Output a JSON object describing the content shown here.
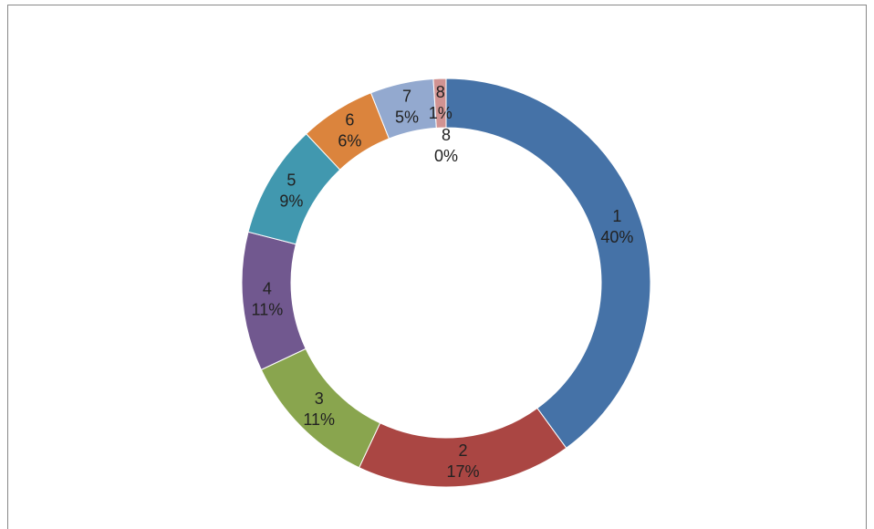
{
  "chart_data": {
    "type": "donut",
    "categories": [
      "1",
      "2",
      "3",
      "4",
      "5",
      "6",
      "7",
      "8",
      "8"
    ],
    "values": [
      40,
      17,
      11,
      11,
      9,
      6,
      5,
      1,
      0
    ],
    "value_labels": [
      "40%",
      "17%",
      "11%",
      "11%",
      "9%",
      "6%",
      "5%",
      "1%",
      "0%"
    ],
    "colors": [
      "#4572a7",
      "#aa4643",
      "#89a54e",
      "#71588f",
      "#4198af",
      "#db843d",
      "#93a9cf",
      "#d19392",
      "#b9cd96"
    ]
  }
}
